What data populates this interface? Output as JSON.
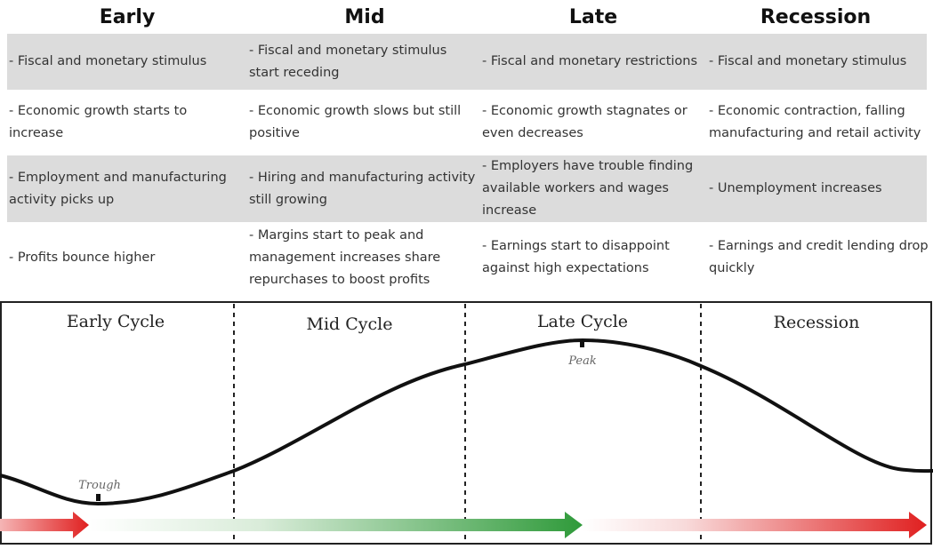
{
  "header": {
    "columns": [
      "Early",
      "Mid",
      "Late",
      "Recession"
    ]
  },
  "table": {
    "rows": [
      [
        "- Fiscal and monetary stimulus",
        "- Fiscal and monetary stimulus start receding",
        "- Fiscal and monetary restrictions",
        "- Fiscal and monetary stimulus"
      ],
      [
        "- Economic growth starts to increase",
        "- Economic growth slows but still positive",
        "- Economic growth stagnates or even decreases",
        "- Economic contraction, falling manufacturing and retail activity"
      ],
      [
        "- Employment and manufacturing activity picks up",
        "- Hiring and manufacturing activity still growing",
        "- Employers have trouble finding available workers and wages increase",
        "- Unemployment increases"
      ],
      [
        "- Profits bounce higher",
        "- Margins start to peak and management increases share repurchases to boost profits",
        "- Earnings start to disappoint against high expectations",
        "- Earnings and credit lending drop quickly"
      ]
    ]
  },
  "diagram": {
    "phases": [
      "Early Cycle",
      "Mid Cycle",
      "Late Cycle",
      "Recession"
    ],
    "trough": "Trough",
    "peak": "Peak"
  }
}
